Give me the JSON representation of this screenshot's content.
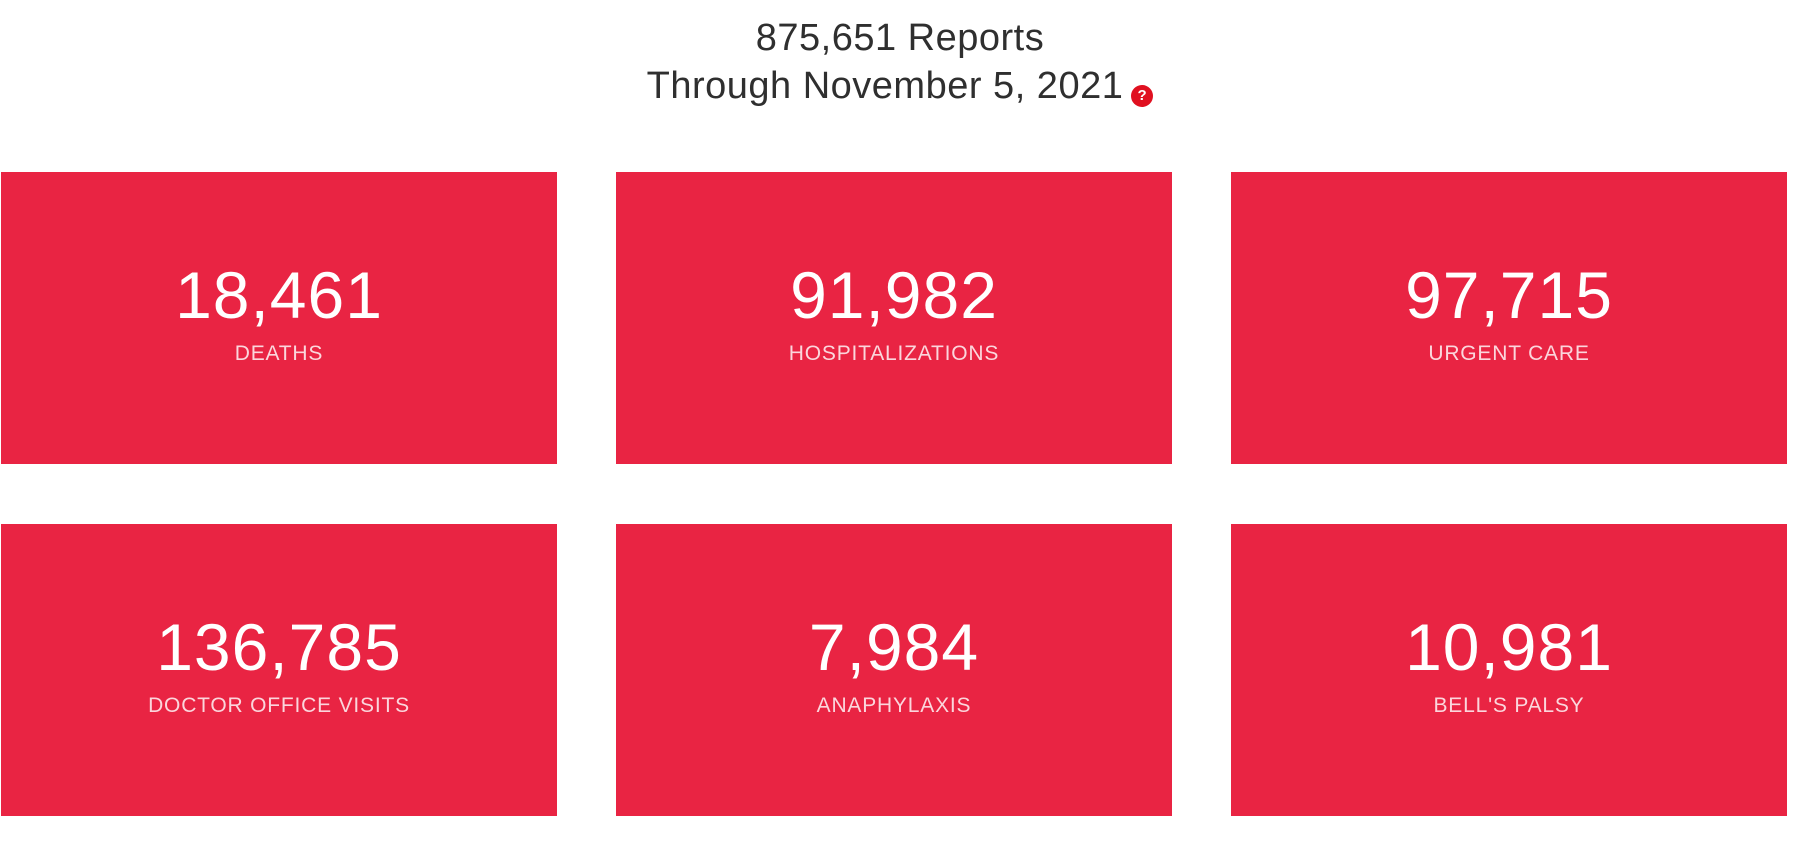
{
  "header": {
    "reports_line": "875,651 Reports",
    "date_line": "Through November 5, 2021",
    "help_icon_glyph": "?",
    "help_icon_name": "question-circle-icon",
    "help_icon_color": "#e01020"
  },
  "theme": {
    "card_color": "#e92443",
    "card_text_color": "#ffffff"
  },
  "cards": [
    {
      "value": "18,461",
      "label": "DEATHS"
    },
    {
      "value": "91,982",
      "label": "HOSPITALIZATIONS"
    },
    {
      "value": "97,715",
      "label": "URGENT CARE"
    },
    {
      "value": "136,785",
      "label": "DOCTOR OFFICE VISITS"
    },
    {
      "value": "7,984",
      "label": "ANAPHYLAXIS"
    },
    {
      "value": "10,981",
      "label": "BELL'S PALSY"
    }
  ]
}
